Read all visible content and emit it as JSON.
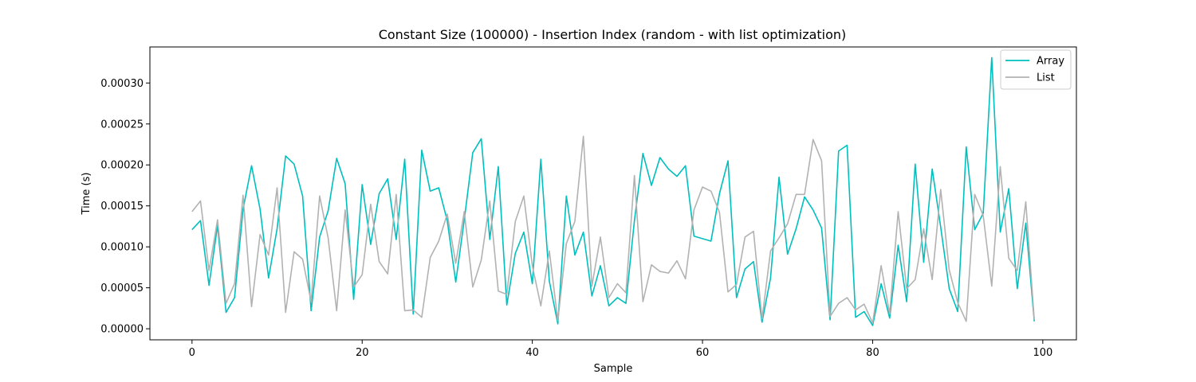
{
  "chart_data": {
    "type": "line",
    "title": "Constant Size (100000) - Insertion Index (random - with list optimization)",
    "xlabel": "Sample",
    "ylabel": "Time (s)",
    "xlim": [
      -4.95,
      103.95
    ],
    "ylim": [
      -1.35e-05,
      0.000344
    ],
    "xticks": [
      0,
      20,
      40,
      60,
      80,
      100
    ],
    "xtick_labels": [
      "0",
      "20",
      "40",
      "60",
      "80",
      "100"
    ],
    "yticks": [
      0,
      5e-05,
      0.0001,
      0.00015,
      0.0002,
      0.00025,
      0.0003
    ],
    "ytick_labels": [
      "0.00000",
      "0.00005",
      "0.00010",
      "0.00015",
      "0.00020",
      "0.00025",
      "0.00030"
    ],
    "grid": false,
    "legend_position": "top-right",
    "series": [
      {
        "name": "Array",
        "color": "#00bfbf",
        "values": [
          0.000121,
          0.000132,
          5.3e-05,
          0.000126,
          2e-05,
          3.8e-05,
          0.000146,
          0.000199,
          0.000146,
          6.2e-05,
          0.000122,
          0.000211,
          0.000201,
          0.000162,
          2.2e-05,
          0.000112,
          0.000144,
          0.000208,
          0.000177,
          3.6e-05,
          0.000176,
          0.000103,
          0.000165,
          0.000183,
          0.000109,
          0.000207,
          1.8e-05,
          0.000218,
          0.000168,
          0.000172,
          0.000132,
          5.7e-05,
          0.000133,
          0.000215,
          0.000232,
          0.000109,
          0.000198,
          2.9e-05,
          9.2e-05,
          0.000118,
          5.5e-05,
          0.000207,
          5.8e-05,
          6e-06,
          0.000162,
          9e-05,
          0.000118,
          4e-05,
          7.7e-05,
          2.8e-05,
          3.8e-05,
          3.1e-05,
          0.000132,
          0.000214,
          0.000175,
          0.000209,
          0.000195,
          0.000186,
          0.000199,
          0.000113,
          0.00011,
          0.000107,
          0.000165,
          0.000205,
          3.8e-05,
          7.3e-05,
          8.2e-05,
          8e-06,
          6.2e-05,
          0.000185,
          9.1e-05,
          0.000122,
          0.000161,
          0.000145,
          0.000123,
          1.1e-05,
          0.000217,
          0.000224,
          1.4e-05,
          2.1e-05,
          4e-06,
          5.5e-05,
          1.3e-05,
          0.000102,
          3.3e-05,
          0.000201,
          8.1e-05,
          0.000195,
          0.000124,
          4.9e-05,
          2.1e-05,
          0.000222,
          0.000121,
          0.000141,
          0.000331,
          0.000118,
          0.000171,
          4.9e-05,
          0.000129,
          9e-06
        ]
      },
      {
        "name": "List",
        "color": "#b2b2b2",
        "values": [
          0.000143,
          0.000156,
          7.1e-05,
          0.000133,
          3.1e-05,
          5.5e-05,
          0.000163,
          2.7e-05,
          0.000115,
          9e-05,
          0.000172,
          2e-05,
          9.4e-05,
          8.5e-05,
          3.3e-05,
          0.000162,
          0.000111,
          2.2e-05,
          0.000145,
          5.1e-05,
          6.6e-05,
          0.000152,
          8.2e-05,
          6.7e-05,
          0.000164,
          2.2e-05,
          2.3e-05,
          1.4e-05,
          8.7e-05,
          0.000107,
          0.00014,
          8e-05,
          0.000143,
          5.1e-05,
          8.4e-05,
          0.000156,
          4.6e-05,
          4.2e-05,
          0.000131,
          0.000162,
          7.7e-05,
          2.8e-05,
          9.5e-05,
          1e-05,
          0.000104,
          0.000131,
          0.000235,
          5.2e-05,
          0.000112,
          3.8e-05,
          5.5e-05,
          4.4e-05,
          0.000187,
          3.3e-05,
          7.8e-05,
          7e-05,
          6.8e-05,
          8.3e-05,
          6.1e-05,
          0.000145,
          0.000173,
          0.000168,
          0.000142,
          4.5e-05,
          5.4e-05,
          0.000112,
          0.000119,
          1.2e-05,
          9.5e-05,
          0.000111,
          0.000128,
          0.000164,
          0.000164,
          0.000231,
          0.000205,
          1.5e-05,
          3.1e-05,
          3.8e-05,
          2.3e-05,
          3e-05,
          7e-06,
          7.7e-05,
          1.8e-05,
          0.000143,
          4.9e-05,
          6e-05,
          0.000122,
          6e-05,
          0.00017,
          7.2e-05,
          3.2e-05,
          9e-06,
          0.000164,
          0.000138,
          5.2e-05,
          0.000198,
          8.6e-05,
          7.1e-05,
          0.000155,
          1.1e-05
        ]
      }
    ]
  }
}
